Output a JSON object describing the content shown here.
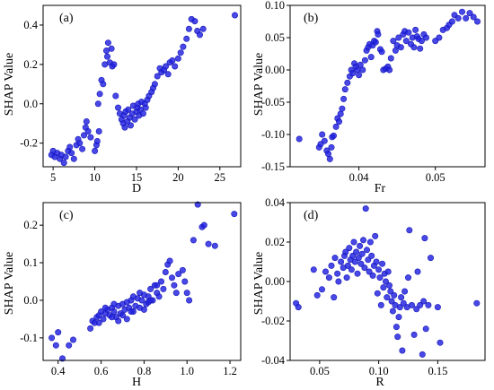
{
  "chart_data": [
    {
      "type": "scatter",
      "panel": "(a)",
      "xlabel": "D",
      "ylabel": "SHAP Value",
      "xlim": [
        3.8,
        27.5
      ],
      "ylim": [
        -0.32,
        0.5
      ],
      "xticks": [
        5,
        10,
        15,
        20,
        25
      ],
      "yticks": [
        -0.2,
        0.0,
        0.2,
        0.4
      ],
      "ytick_labels": [
        "-0.2",
        "0.0",
        "0.2",
        "0.4"
      ],
      "color": "#2020e0",
      "points": [
        [
          4.8,
          -0.26
        ],
        [
          5.0,
          -0.24
        ],
        [
          5.2,
          -0.27
        ],
        [
          5.5,
          -0.25
        ],
        [
          5.8,
          -0.28
        ],
        [
          6.0,
          -0.26
        ],
        [
          6.3,
          -0.3
        ],
        [
          6.5,
          -0.27
        ],
        [
          6.8,
          -0.24
        ],
        [
          7.0,
          -0.22
        ],
        [
          7.2,
          -0.25
        ],
        [
          7.5,
          -0.28
        ],
        [
          7.8,
          -0.21
        ],
        [
          8.0,
          -0.18
        ],
        [
          8.2,
          -0.2
        ],
        [
          8.5,
          -0.23
        ],
        [
          8.7,
          -0.16
        ],
        [
          8.9,
          -0.12
        ],
        [
          9.0,
          -0.09
        ],
        [
          9.2,
          -0.14
        ],
        [
          9.5,
          -0.17
        ],
        [
          10.0,
          -0.24
        ],
        [
          10.2,
          -0.21
        ],
        [
          10.3,
          -0.19
        ],
        [
          10.5,
          -0.14
        ],
        [
          10.4,
          0.0
        ],
        [
          10.6,
          0.05
        ],
        [
          10.8,
          0.12
        ],
        [
          11.0,
          0.1
        ],
        [
          11.2,
          0.2
        ],
        [
          11.4,
          0.27
        ],
        [
          11.5,
          0.24
        ],
        [
          11.6,
          0.31
        ],
        [
          11.8,
          0.21
        ],
        [
          12.0,
          0.28
        ],
        [
          12.1,
          0.19
        ],
        [
          12.3,
          0.2
        ],
        [
          12.5,
          0.04
        ],
        [
          12.8,
          -0.02
        ],
        [
          13.0,
          -0.05
        ],
        [
          13.2,
          -0.08
        ],
        [
          13.4,
          -0.1
        ],
        [
          13.5,
          -0.06
        ],
        [
          13.6,
          -0.12
        ],
        [
          13.7,
          -0.04
        ],
        [
          13.9,
          -0.09
        ],
        [
          14.0,
          -0.03
        ],
        [
          14.2,
          -0.07
        ],
        [
          14.3,
          -0.11
        ],
        [
          14.5,
          -0.05
        ],
        [
          14.6,
          -0.01
        ],
        [
          14.8,
          -0.08
        ],
        [
          15.0,
          -0.04
        ],
        [
          15.1,
          -0.02
        ],
        [
          15.2,
          0.0
        ],
        [
          15.3,
          -0.06
        ],
        [
          15.5,
          -0.03
        ],
        [
          15.6,
          0.01
        ],
        [
          15.8,
          -0.05
        ],
        [
          16.0,
          0.0
        ],
        [
          16.1,
          -0.02
        ],
        [
          16.3,
          0.02
        ],
        [
          16.5,
          0.04
        ],
        [
          16.8,
          0.06
        ],
        [
          17.0,
          0.08
        ],
        [
          17.2,
          0.1
        ],
        [
          17.5,
          0.14
        ],
        [
          17.8,
          0.18
        ],
        [
          18.0,
          0.16
        ],
        [
          18.3,
          0.17
        ],
        [
          18.5,
          0.19
        ],
        [
          18.8,
          0.15
        ],
        [
          19.0,
          0.21
        ],
        [
          19.3,
          0.22
        ],
        [
          19.6,
          0.19
        ],
        [
          20.0,
          0.23
        ],
        [
          20.3,
          0.26
        ],
        [
          20.6,
          0.29
        ],
        [
          21.0,
          0.33
        ],
        [
          21.3,
          0.38
        ],
        [
          21.6,
          0.43
        ],
        [
          22.0,
          0.42
        ],
        [
          22.3,
          0.37
        ],
        [
          22.6,
          0.35
        ],
        [
          23.0,
          0.38
        ],
        [
          26.8,
          0.45
        ]
      ]
    },
    {
      "type": "scatter",
      "panel": "(b)",
      "xlabel": "Fr",
      "ylabel": "SHAP Value",
      "xlim": [
        0.031,
        0.0565
      ],
      "ylim": [
        -0.15,
        0.1
      ],
      "xticks": [
        0.04,
        0.05
      ],
      "xtick_labels": [
        "0.04",
        "0.05"
      ],
      "yticks": [
        -0.15,
        -0.1,
        -0.05,
        0.0,
        0.05,
        0.1
      ],
      "ytick_labels": [
        "-0.15",
        "-0.10",
        "-0.05",
        "0.00",
        "0.05",
        "0.10"
      ],
      "color": "#2020e0",
      "points": [
        [
          0.0322,
          -0.107
        ],
        [
          0.0348,
          -0.12
        ],
        [
          0.035,
          -0.115
        ],
        [
          0.0352,
          -0.1
        ],
        [
          0.0355,
          -0.11
        ],
        [
          0.0358,
          -0.125
        ],
        [
          0.036,
          -0.13
        ],
        [
          0.0362,
          -0.138
        ],
        [
          0.0364,
          -0.12
        ],
        [
          0.0365,
          -0.104
        ],
        [
          0.0367,
          -0.102
        ],
        [
          0.037,
          -0.088
        ],
        [
          0.0372,
          -0.075
        ],
        [
          0.0374,
          -0.08
        ],
        [
          0.0376,
          -0.068
        ],
        [
          0.0378,
          -0.06
        ],
        [
          0.038,
          -0.045
        ],
        [
          0.0382,
          -0.03
        ],
        [
          0.0385,
          -0.02
        ],
        [
          0.0388,
          -0.01
        ],
        [
          0.039,
          0.0
        ],
        [
          0.0392,
          -0.005
        ],
        [
          0.0394,
          0.01
        ],
        [
          0.0396,
          0.005
        ],
        [
          0.0398,
          0.0
        ],
        [
          0.04,
          -0.008
        ],
        [
          0.0402,
          0.008
        ],
        [
          0.0405,
          0.0
        ],
        [
          0.0408,
          0.015
        ],
        [
          0.041,
          0.03
        ],
        [
          0.0412,
          0.035
        ],
        [
          0.0414,
          0.04
        ],
        [
          0.0416,
          0.02
        ],
        [
          0.0418,
          0.038
        ],
        [
          0.042,
          0.045
        ],
        [
          0.0422,
          0.043
        ],
        [
          0.0424,
          0.06
        ],
        [
          0.0425,
          0.055
        ],
        [
          0.0428,
          0.032
        ],
        [
          0.043,
          0.028
        ],
        [
          0.0432,
          0.0
        ],
        [
          0.0435,
          0.002
        ],
        [
          0.0438,
          0.005
        ],
        [
          0.044,
          0.0
        ],
        [
          0.0442,
          0.018
        ],
        [
          0.0445,
          0.045
        ],
        [
          0.0448,
          0.03
        ],
        [
          0.045,
          0.038
        ],
        [
          0.0452,
          0.05
        ],
        [
          0.0455,
          0.035
        ],
        [
          0.0458,
          0.055
        ],
        [
          0.046,
          0.06
        ],
        [
          0.0462,
          0.045
        ],
        [
          0.0465,
          0.058
        ],
        [
          0.0468,
          0.04
        ],
        [
          0.047,
          0.05
        ],
        [
          0.0472,
          0.035
        ],
        [
          0.0474,
          0.062
        ],
        [
          0.0476,
          0.052
        ],
        [
          0.0478,
          0.048
        ],
        [
          0.048,
          0.033
        ],
        [
          0.0482,
          0.045
        ],
        [
          0.0485,
          0.055
        ],
        [
          0.0488,
          0.05
        ],
        [
          0.05,
          0.045
        ],
        [
          0.0505,
          0.05
        ],
        [
          0.051,
          0.062
        ],
        [
          0.0515,
          0.065
        ],
        [
          0.0518,
          0.07
        ],
        [
          0.0522,
          0.075
        ],
        [
          0.0525,
          0.085
        ],
        [
          0.053,
          0.08
        ],
        [
          0.0535,
          0.09
        ],
        [
          0.054,
          0.08
        ],
        [
          0.0545,
          0.088
        ],
        [
          0.055,
          0.082
        ],
        [
          0.0555,
          0.075
        ]
      ]
    },
    {
      "type": "scatter",
      "panel": "(c)",
      "xlabel": "H",
      "ylabel": "SHAP Value",
      "xlim": [
        0.33,
        1.25
      ],
      "ylim": [
        -0.16,
        0.26
      ],
      "xticks": [
        0.4,
        0.6,
        0.8,
        1.0,
        1.2
      ],
      "xtick_labels": [
        "0.4",
        "0.6",
        "0.8",
        "1.0",
        "1.2"
      ],
      "yticks": [
        -0.1,
        0.0,
        0.1,
        0.2
      ],
      "ytick_labels": [
        "-0.1",
        "0.0",
        "0.1",
        "0.2"
      ],
      "color": "#2020e0",
      "points": [
        [
          0.37,
          -0.1
        ],
        [
          0.39,
          -0.12
        ],
        [
          0.4,
          -0.085
        ],
        [
          0.42,
          -0.155
        ],
        [
          0.45,
          -0.12
        ],
        [
          0.47,
          -0.105
        ],
        [
          0.55,
          -0.075
        ],
        [
          0.56,
          -0.055
        ],
        [
          0.57,
          -0.06
        ],
        [
          0.58,
          -0.045
        ],
        [
          0.59,
          -0.04
        ],
        [
          0.6,
          -0.03
        ],
        [
          0.61,
          -0.05
        ],
        [
          0.62,
          -0.035
        ],
        [
          0.63,
          -0.025
        ],
        [
          0.64,
          -0.04
        ],
        [
          0.65,
          -0.02
        ],
        [
          0.66,
          -0.03
        ],
        [
          0.67,
          -0.045
        ],
        [
          0.68,
          -0.015
        ],
        [
          0.69,
          -0.035
        ],
        [
          0.7,
          -0.01
        ],
        [
          0.71,
          -0.025
        ],
        [
          0.72,
          -0.005
        ],
        [
          0.73,
          -0.02
        ],
        [
          0.74,
          0.0
        ],
        [
          0.75,
          -0.03
        ],
        [
          0.76,
          -0.015
        ],
        [
          0.77,
          0.005
        ],
        [
          0.78,
          -0.02
        ],
        [
          0.79,
          0.0
        ],
        [
          0.8,
          0.015
        ],
        [
          0.81,
          -0.01
        ],
        [
          0.82,
          0.01
        ],
        [
          0.83,
          0.03
        ],
        [
          0.84,
          0.0
        ],
        [
          0.85,
          0.04
        ],
        [
          0.86,
          0.02
        ],
        [
          0.87,
          0.01
        ],
        [
          0.88,
          0.05
        ],
        [
          0.89,
          0.03
        ],
        [
          0.9,
          0.075
        ],
        [
          0.91,
          0.095
        ],
        [
          0.92,
          0.105
        ],
        [
          0.93,
          0.06
        ],
        [
          0.94,
          0.04
        ],
        [
          0.95,
          0.02
        ],
        [
          0.96,
          0.07
        ],
        [
          0.98,
          0.08
        ],
        [
          0.99,
          0.05
        ],
        [
          1.0,
          0.02
        ],
        [
          1.01,
          0.0
        ],
        [
          1.03,
          0.16
        ],
        [
          1.05,
          0.255
        ],
        [
          1.07,
          0.195
        ],
        [
          1.08,
          0.2
        ],
        [
          1.1,
          0.15
        ],
        [
          1.13,
          0.145
        ],
        [
          1.22,
          0.23
        ],
        [
          0.59,
          -0.06
        ],
        [
          0.62,
          -0.02
        ],
        [
          0.66,
          -0.01
        ],
        [
          0.7,
          -0.04
        ],
        [
          0.74,
          -0.03
        ],
        [
          0.78,
          0.02
        ],
        [
          0.82,
          -0.005
        ],
        [
          0.86,
          0.04
        ],
        [
          0.72,
          -0.05
        ],
        [
          0.65,
          -0.045
        ],
        [
          0.75,
          0.01
        ],
        [
          0.8,
          -0.025
        ],
        [
          0.68,
          -0.055
        ],
        [
          0.83,
          0.0
        ]
      ]
    },
    {
      "type": "scatter",
      "panel": "(d)",
      "xlabel": "R",
      "ylabel": "SHAP Value",
      "xlim": [
        0.025,
        0.19
      ],
      "ylim": [
        -0.04,
        0.04
      ],
      "xticks": [
        0.05,
        0.1,
        0.15
      ],
      "xtick_labels": [
        "0.05",
        "0.10",
        "0.15"
      ],
      "yticks": [
        -0.04,
        -0.02,
        0.0,
        0.02,
        0.04
      ],
      "ytick_labels": [
        "-0.04",
        "-0.02",
        "0.00",
        "0.02",
        "0.04"
      ],
      "color": "#2020e0",
      "points": [
        [
          0.03,
          -0.011
        ],
        [
          0.032,
          -0.013
        ],
        [
          0.045,
          0.006
        ],
        [
          0.048,
          -0.007
        ],
        [
          0.052,
          -0.004
        ],
        [
          0.055,
          0.005
        ],
        [
          0.058,
          0.002
        ],
        [
          0.06,
          0.008
        ],
        [
          0.062,
          -0.008
        ],
        [
          0.063,
          0.012
        ],
        [
          0.065,
          0.004
        ],
        [
          0.066,
          0.0
        ],
        [
          0.068,
          0.01
        ],
        [
          0.07,
          0.007
        ],
        [
          0.071,
          0.013
        ],
        [
          0.072,
          0.015
        ],
        [
          0.073,
          0.002
        ],
        [
          0.074,
          0.008
        ],
        [
          0.075,
          0.017
        ],
        [
          0.076,
          0.011
        ],
        [
          0.077,
          0.006
        ],
        [
          0.078,
          0.013
        ],
        [
          0.079,
          0.02
        ],
        [
          0.08,
          0.01
        ],
        [
          0.081,
          0.015
        ],
        [
          0.082,
          0.004
        ],
        [
          0.083,
          0.012
        ],
        [
          0.084,
          0.018
        ],
        [
          0.085,
          0.009
        ],
        [
          0.086,
          0.014
        ],
        [
          0.087,
          0.021
        ],
        [
          0.088,
          0.007
        ],
        [
          0.089,
          0.037
        ],
        [
          0.09,
          0.016
        ],
        [
          0.091,
          0.011
        ],
        [
          0.092,
          0.005
        ],
        [
          0.093,
          0.02
        ],
        [
          0.094,
          0.013
        ],
        [
          0.095,
          0.003
        ],
        [
          0.096,
          0.008
        ],
        [
          0.097,
          0.023
        ],
        [
          0.098,
          0.01
        ],
        [
          0.099,
          -0.006
        ],
        [
          0.1,
          0.006
        ],
        [
          0.101,
          0.002
        ],
        [
          0.102,
          -0.012
        ],
        [
          0.103,
          0.009
        ],
        [
          0.104,
          -0.003
        ],
        [
          0.105,
          0.004
        ],
        [
          0.106,
          0.0
        ],
        [
          0.107,
          -0.008
        ],
        [
          0.108,
          0.005
        ],
        [
          0.109,
          -0.002
        ],
        [
          0.11,
          -0.005
        ],
        [
          0.111,
          -0.01
        ],
        [
          0.112,
          -0.015
        ],
        [
          0.113,
          -0.007
        ],
        [
          0.114,
          -0.012
        ],
        [
          0.115,
          -0.023
        ],
        [
          0.116,
          -0.028
        ],
        [
          0.117,
          -0.018
        ],
        [
          0.118,
          -0.013
        ],
        [
          0.119,
          -0.008
        ],
        [
          0.12,
          -0.035
        ],
        [
          0.121,
          -0.011
        ],
        [
          0.122,
          -0.005
        ],
        [
          0.124,
          -0.013
        ],
        [
          0.125,
          0.002
        ],
        [
          0.126,
          0.026
        ],
        [
          0.128,
          -0.012
        ],
        [
          0.13,
          -0.027
        ],
        [
          0.132,
          -0.014
        ],
        [
          0.133,
          0.005
        ],
        [
          0.135,
          -0.012
        ],
        [
          0.137,
          -0.037
        ],
        [
          0.138,
          -0.01
        ],
        [
          0.139,
          0.022
        ],
        [
          0.14,
          -0.024
        ],
        [
          0.142,
          -0.012
        ],
        [
          0.144,
          0.012
        ],
        [
          0.15,
          -0.013
        ],
        [
          0.152,
          -0.031
        ],
        [
          0.183,
          -0.011
        ]
      ]
    }
  ]
}
